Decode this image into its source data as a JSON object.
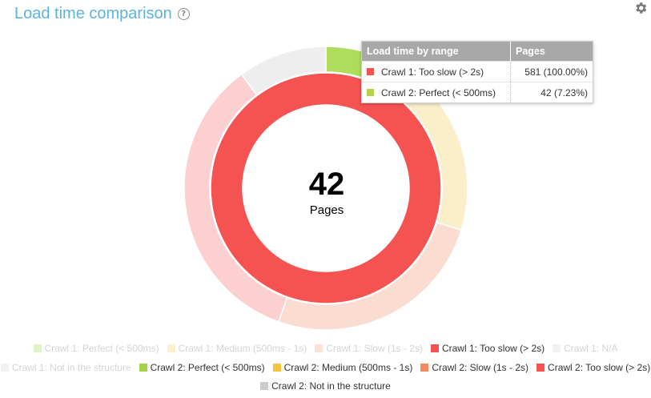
{
  "header": {
    "title": "Load time comparison",
    "help_symbol": "?"
  },
  "center": {
    "value": "42",
    "label": "Pages"
  },
  "tooltip": {
    "col1": "Load time by range",
    "col2": "Pages",
    "rows": [
      {
        "label": "Crawl 1: Too slow (> 2s)",
        "value": "581 (100.00%)",
        "color": "#f55252"
      },
      {
        "label": "Crawl 2: Perfect (< 500ms)",
        "value": "42 (7.23%)",
        "color": "#b5d44a"
      }
    ]
  },
  "chart_data": {
    "type": "pie",
    "subtype": "nested-donut",
    "rings": [
      {
        "name": "outer",
        "slices": [
          {
            "label": "Crawl 2: Perfect (< 500ms)",
            "value": 42,
            "percent": 7.23,
            "color": "#aedd5c"
          },
          {
            "label": "Crawl 2: Medium (500ms - 1s)",
            "value": 131,
            "color": "#fbeecb"
          },
          {
            "label": "Crawl 2: Slow (1s - 2s)",
            "value": 149,
            "color": "#fbdcd0"
          },
          {
            "label": "Crawl 2: Too slow (> 2s)",
            "value": 200,
            "color": "#fcd0d0"
          },
          {
            "label": "Crawl 2: Not in the structure",
            "value": 59,
            "color": "#eeeeee"
          }
        ]
      },
      {
        "name": "inner",
        "slices": [
          {
            "label": "Crawl 1: Too slow (> 2s)",
            "value": 581,
            "percent": 100.0,
            "color": "#f55252"
          }
        ]
      }
    ]
  },
  "legend": {
    "rows": [
      [
        {
          "label": "Crawl 1: Perfect (< 500ms)",
          "color": "#e2f3c8",
          "active": false
        },
        {
          "label": "Crawl 1: Medium (500ms - 1s)",
          "color": "#fdf0cf",
          "active": false
        },
        {
          "label": "Crawl 1: Slow (1s - 2s)",
          "color": "#fde0d8",
          "active": false
        },
        {
          "label": "Crawl 1: Too slow (> 2s)",
          "color": "#f55252",
          "active": true
        },
        {
          "label": "Crawl 1: N/A",
          "color": "#f2f2f2",
          "active": false
        }
      ],
      [
        {
          "label": "Crawl 1: Not in the structure",
          "color": "#f2f2f2",
          "active": false
        },
        {
          "label": "Crawl 2: Perfect (< 500ms)",
          "color": "#a3d24a",
          "active": true
        },
        {
          "label": "Crawl 2: Medium (500ms - 1s)",
          "color": "#f5c542",
          "active": true
        },
        {
          "label": "Crawl 2: Slow (1s - 2s)",
          "color": "#f28a5f",
          "active": true
        },
        {
          "label": "Crawl 2: Too slow (> 2s)",
          "color": "#f55252",
          "active": true
        }
      ],
      [
        {
          "label": "Crawl 2: Not in the structure",
          "color": "#cccccc",
          "active": true
        }
      ]
    ]
  }
}
